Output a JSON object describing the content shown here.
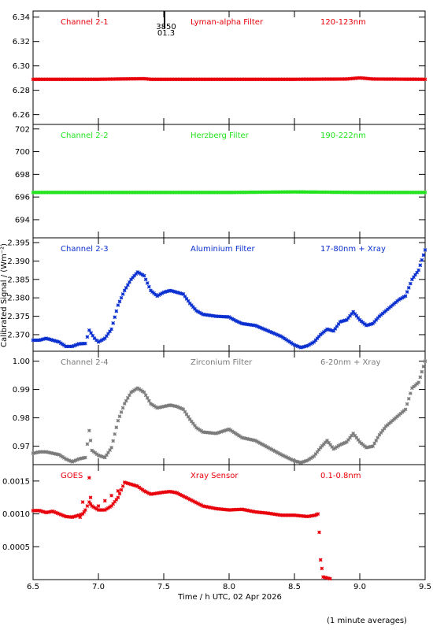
{
  "chart_data": {
    "type": "scatter",
    "xlabel": "Time / h UTC, 02 Apr 2026",
    "ylabel": "Calibrated Signal / (Wm⁻²)",
    "footnote": "(1 minute averages)",
    "xlim": [
      6.5,
      9.5
    ],
    "x_ticks": [
      "6.5",
      "7.0",
      "7.5",
      "8.0",
      "8.5",
      "9.0",
      "9.5"
    ],
    "marker": {
      "x": 7.5,
      "labels": [
        "3850",
        "01.3"
      ]
    },
    "panels": [
      {
        "name": "Channel 2-1",
        "filter": "Lyman-alpha Filter",
        "band": "120-123nm",
        "color": "#e8000b",
        "ylim": [
          6.252,
          6.345
        ],
        "y_ticks": [
          "6.26",
          "6.28",
          "6.30",
          "6.32",
          "6.34"
        ],
        "points": [
          [
            6.5,
            6.289
          ],
          [
            7.0,
            6.289
          ],
          [
            7.35,
            6.2895
          ],
          [
            7.4,
            6.289
          ],
          [
            8.0,
            6.289
          ],
          [
            8.5,
            6.289
          ],
          [
            8.9,
            6.2892
          ],
          [
            9.0,
            6.2902
          ],
          [
            9.1,
            6.2892
          ],
          [
            9.5,
            6.289
          ]
        ]
      },
      {
        "name": "Channel 2-2",
        "filter": "Herzberg Filter",
        "band": "190-222nm",
        "color": "#22e31e",
        "ylim": [
          692.4,
          702.4
        ],
        "y_ticks": [
          "694",
          "696",
          "698",
          "700",
          "702"
        ],
        "points": [
          [
            6.5,
            696.4
          ],
          [
            7.0,
            696.4
          ],
          [
            7.5,
            696.4
          ],
          [
            8.0,
            696.4
          ],
          [
            8.5,
            696.45
          ],
          [
            9.0,
            696.4
          ],
          [
            9.5,
            696.4
          ]
        ]
      },
      {
        "name": "Channel 2-3",
        "filter": "Aluminium Filter",
        "band": "17-80nm + Xray",
        "color": "#0a2fd0",
        "ylim": [
          2.3655,
          2.3963
        ],
        "y_ticks": [
          "2.370",
          "2.375",
          "2.380",
          "2.385",
          "2.390",
          "2.395"
        ],
        "points": [
          [
            6.5,
            2.3685
          ],
          [
            6.55,
            2.3685
          ],
          [
            6.6,
            2.369
          ],
          [
            6.65,
            2.3685
          ],
          [
            6.7,
            2.368
          ],
          [
            6.75,
            2.3668
          ],
          [
            6.8,
            2.3668
          ],
          [
            6.85,
            2.3675
          ],
          [
            6.9,
            2.3676
          ],
          [
            6.93,
            2.3712
          ],
          [
            6.97,
            2.369
          ],
          [
            7.0,
            2.368
          ],
          [
            7.05,
            2.369
          ],
          [
            7.1,
            2.3715
          ],
          [
            7.15,
            2.378
          ],
          [
            7.2,
            2.382
          ],
          [
            7.25,
            2.385
          ],
          [
            7.3,
            2.387
          ],
          [
            7.35,
            2.386
          ],
          [
            7.4,
            2.382
          ],
          [
            7.45,
            2.3805
          ],
          [
            7.5,
            2.3815
          ],
          [
            7.55,
            2.382
          ],
          [
            7.6,
            2.3815
          ],
          [
            7.65,
            2.381
          ],
          [
            7.7,
            2.3785
          ],
          [
            7.75,
            2.3765
          ],
          [
            7.8,
            2.3755
          ],
          [
            7.9,
            2.375
          ],
          [
            8.0,
            2.3748
          ],
          [
            8.05,
            2.3738
          ],
          [
            8.1,
            2.373
          ],
          [
            8.2,
            2.3725
          ],
          [
            8.3,
            2.371
          ],
          [
            8.4,
            2.3695
          ],
          [
            8.5,
            2.3672
          ],
          [
            8.55,
            2.3665
          ],
          [
            8.6,
            2.367
          ],
          [
            8.65,
            2.368
          ],
          [
            8.7,
            2.37
          ],
          [
            8.75,
            2.3715
          ],
          [
            8.8,
            2.371
          ],
          [
            8.85,
            2.3735
          ],
          [
            8.9,
            2.374
          ],
          [
            8.95,
            2.3762
          ],
          [
            9.0,
            2.374
          ],
          [
            9.05,
            2.3725
          ],
          [
            9.1,
            2.373
          ],
          [
            9.15,
            2.375
          ],
          [
            9.2,
            2.3765
          ],
          [
            9.25,
            2.378
          ],
          [
            9.3,
            2.3795
          ],
          [
            9.35,
            2.3805
          ],
          [
            9.4,
            2.385
          ],
          [
            9.45,
            2.3875
          ],
          [
            9.5,
            2.393
          ]
        ]
      },
      {
        "name": "Channel 2-4",
        "filter": "Zirconium Filter",
        "band": "6-20nm + Xray",
        "color": "#7b7b7b",
        "ylim": [
          0.9635,
          1.0035
        ],
        "y_ticks": [
          "0.97",
          "0.98",
          "0.99",
          "1.00"
        ],
        "points": [
          [
            6.5,
            0.9675
          ],
          [
            6.55,
            0.968
          ],
          [
            6.6,
            0.968
          ],
          [
            6.65,
            0.9675
          ],
          [
            6.7,
            0.967
          ],
          [
            6.75,
            0.9655
          ],
          [
            6.8,
            0.9645
          ],
          [
            6.85,
            0.9655
          ],
          [
            6.9,
            0.966
          ],
          [
            6.93,
            0.9755
          ],
          [
            6.95,
            0.9685
          ],
          [
            7.0,
            0.9668
          ],
          [
            7.05,
            0.966
          ],
          [
            7.1,
            0.9695
          ],
          [
            7.15,
            0.979
          ],
          [
            7.2,
            0.985
          ],
          [
            7.25,
            0.989
          ],
          [
            7.3,
            0.9905
          ],
          [
            7.35,
            0.989
          ],
          [
            7.4,
            0.985
          ],
          [
            7.45,
            0.9835
          ],
          [
            7.5,
            0.984
          ],
          [
            7.55,
            0.9845
          ],
          [
            7.6,
            0.984
          ],
          [
            7.65,
            0.983
          ],
          [
            7.7,
            0.9795
          ],
          [
            7.75,
            0.9765
          ],
          [
            7.8,
            0.975
          ],
          [
            7.9,
            0.9745
          ],
          [
            8.0,
            0.976
          ],
          [
            8.05,
            0.9745
          ],
          [
            8.1,
            0.973
          ],
          [
            8.2,
            0.972
          ],
          [
            8.3,
            0.9695
          ],
          [
            8.4,
            0.967
          ],
          [
            8.5,
            0.9648
          ],
          [
            8.55,
            0.9642
          ],
          [
            8.6,
            0.965
          ],
          [
            8.65,
            0.9665
          ],
          [
            8.7,
            0.9695
          ],
          [
            8.75,
            0.972
          ],
          [
            8.8,
            0.969
          ],
          [
            8.85,
            0.9705
          ],
          [
            8.9,
            0.9715
          ],
          [
            8.95,
            0.9745
          ],
          [
            9.0,
            0.9715
          ],
          [
            9.05,
            0.9695
          ],
          [
            9.1,
            0.97
          ],
          [
            9.15,
            0.974
          ],
          [
            9.2,
            0.977
          ],
          [
            9.25,
            0.979
          ],
          [
            9.3,
            0.981
          ],
          [
            9.35,
            0.983
          ],
          [
            9.4,
            0.9905
          ],
          [
            9.45,
            0.9925
          ],
          [
            9.5,
            1.0
          ]
        ]
      },
      {
        "name": "GOES",
        "filter": "Xray Sensor",
        "band": "0.1-0.8nm",
        "color": "#e8000b",
        "ylim": [
          0.0,
          0.00175
        ],
        "y_ticks": [
          "0.0005",
          "0.0010",
          "0.0015"
        ],
        "points": [
          [
            6.5,
            0.00105
          ],
          [
            6.55,
            0.00105
          ],
          [
            6.6,
            0.00102
          ],
          [
            6.65,
            0.00104
          ],
          [
            6.7,
            0.001
          ],
          [
            6.75,
            0.00096
          ],
          [
            6.8,
            0.00095
          ],
          [
            6.85,
            0.00098
          ],
          [
            6.88,
            0.001
          ],
          [
            6.9,
            0.00106
          ],
          [
            6.93,
            0.00118
          ],
          [
            6.95,
            0.00112
          ],
          [
            7.0,
            0.00106
          ],
          [
            7.05,
            0.00106
          ],
          [
            7.1,
            0.00112
          ],
          [
            7.15,
            0.00125
          ],
          [
            7.2,
            0.00148
          ],
          [
            7.25,
            0.00145
          ],
          [
            7.3,
            0.00142
          ],
          [
            7.35,
            0.00135
          ],
          [
            7.4,
            0.0013
          ],
          [
            7.5,
            0.00133
          ],
          [
            7.55,
            0.00134
          ],
          [
            7.6,
            0.00132
          ],
          [
            7.7,
            0.00122
          ],
          [
            7.8,
            0.00112
          ],
          [
            7.9,
            0.00108
          ],
          [
            8.0,
            0.00106
          ],
          [
            8.1,
            0.00107
          ],
          [
            8.2,
            0.00103
          ],
          [
            8.3,
            0.00101
          ],
          [
            8.4,
            0.00098
          ],
          [
            8.5,
            0.00098
          ],
          [
            8.6,
            0.00096
          ],
          [
            8.66,
            0.00098
          ],
          [
            8.68,
            0.001
          ],
          [
            8.69,
            0.00072
          ],
          [
            8.7,
            0.0003
          ],
          [
            8.72,
            4e-05
          ],
          [
            8.8,
            0.0
          ],
          [
            9.0,
            0.0
          ],
          [
            9.2,
            0.0
          ],
          [
            9.5,
            0.0
          ]
        ],
        "outliers": [
          [
            6.93,
            0.00155
          ],
          [
            6.94,
            0.00125
          ],
          [
            6.86,
            0.00095
          ],
          [
            6.88,
            0.00118
          ],
          [
            7.0,
            0.00112
          ],
          [
            7.05,
            0.0012
          ],
          [
            7.1,
            0.00128
          ],
          [
            7.15,
            0.00135
          ]
        ]
      }
    ]
  }
}
